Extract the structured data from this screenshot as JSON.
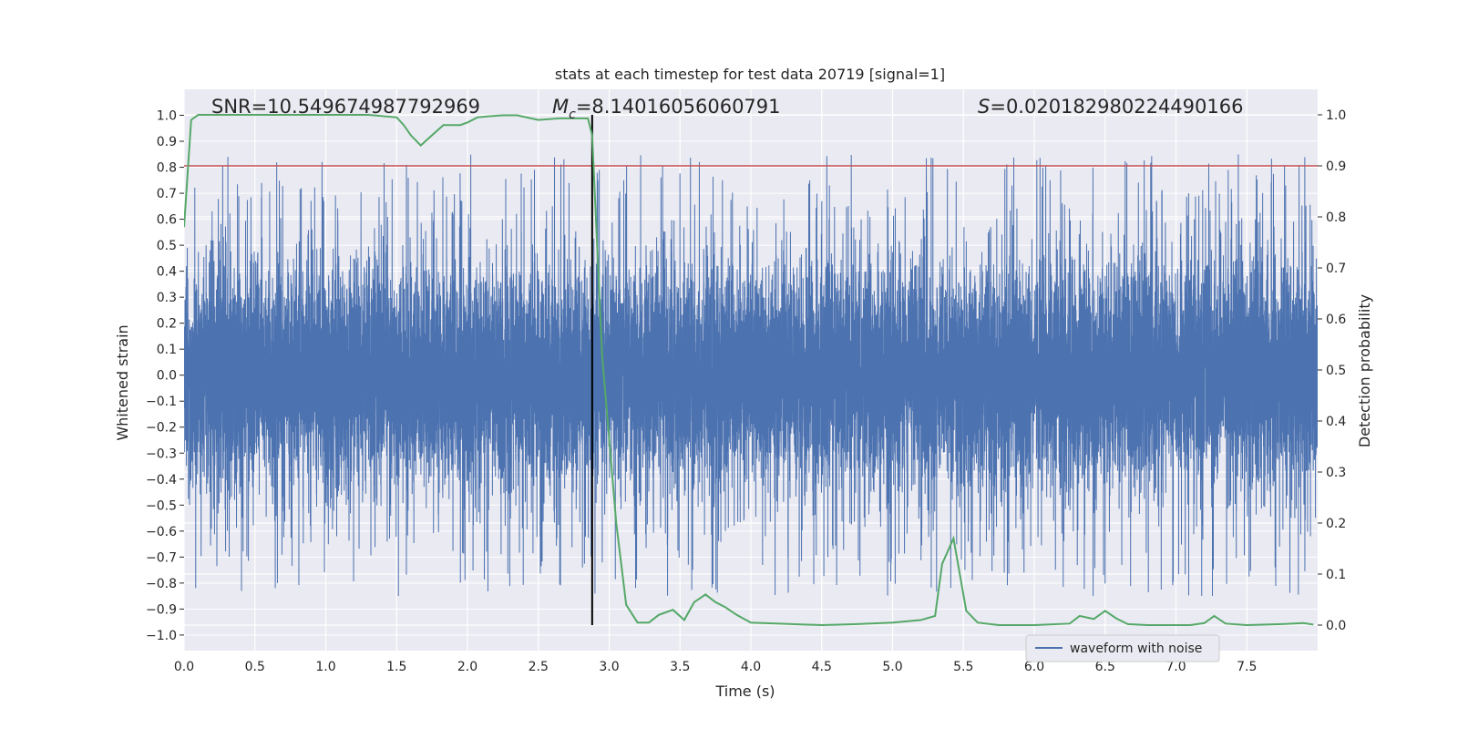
{
  "chart_data": {
    "type": "line",
    "title": "stats at each timestep for test data 20719 [signal=1]",
    "xlabel": "Time (s)",
    "ylabel": "Whitened strain",
    "ylabel_right": "Detection probability",
    "xlim": [
      0.0,
      8.0
    ],
    "ylim": [
      -1.06,
      1.1
    ],
    "ylim_right": [
      -0.05,
      1.05
    ],
    "x_ticks": [
      "0.0",
      "0.5",
      "1.0",
      "1.5",
      "2.0",
      "2.5",
      "3.0",
      "3.5",
      "4.0",
      "4.5",
      "5.0",
      "5.5",
      "6.0",
      "6.5",
      "7.0",
      "7.5"
    ],
    "y_ticks": [
      "1.0",
      "0.9",
      "0.8",
      "0.7",
      "0.6",
      "0.5",
      "0.4",
      "0.3",
      "0.2",
      "0.1",
      "0.0",
      "−0.1",
      "−0.2",
      "−0.3",
      "−0.4",
      "−0.5",
      "−0.6",
      "−0.7",
      "−0.8",
      "−0.9",
      "−1.0"
    ],
    "y_ticks_right": [
      "1.0",
      "0.9",
      "0.8",
      "0.7",
      "0.6",
      "0.5",
      "0.4",
      "0.3",
      "0.2",
      "0.1",
      "0.0"
    ],
    "grid": true,
    "legend": {
      "position": "bottom-right",
      "entries": [
        "waveform with noise"
      ]
    },
    "annotations": {
      "snr": "SNR=10.549674987792969",
      "mc_symbol": "M",
      "mc_sub": "c",
      "mc_value": "=8.14016056060791",
      "s_symbol": "S",
      "s_value": "=0.020182980224490166"
    },
    "threshold_right": 0.9,
    "event_time": 2.88,
    "event_line_range_right": [
      0.0,
      1.0
    ],
    "series": [
      {
        "name": "waveform with noise",
        "axis": "left",
        "color": "#4c72b0",
        "sample_rate": 2048,
        "duration": 8.0,
        "noise_core": 0.32,
        "noise_tail": 0.85
      },
      {
        "axis": "right",
        "color": "#55a868",
        "x": [
          0.0,
          0.05,
          0.1,
          0.15,
          0.2,
          0.3,
          0.5,
          1.0,
          1.3,
          1.5,
          1.55,
          1.6,
          1.67,
          1.75,
          1.83,
          1.9,
          1.95,
          2.0,
          2.07,
          2.15,
          2.25,
          2.35,
          2.5,
          2.65,
          2.75,
          2.85,
          2.88,
          2.95,
          3.05,
          3.12,
          3.2,
          3.28,
          3.35,
          3.45,
          3.53,
          3.6,
          3.68,
          3.75,
          3.82,
          3.9,
          4.0,
          4.5,
          4.75,
          5.0,
          5.2,
          5.3,
          5.35,
          5.43,
          5.52,
          5.6,
          5.75,
          6.0,
          6.25,
          6.32,
          6.42,
          6.5,
          6.58,
          6.66,
          6.8,
          7.0,
          7.1,
          7.2,
          7.27,
          7.35,
          7.5,
          7.75,
          7.9,
          7.97
        ],
        "y": [
          0.78,
          0.99,
          1.0,
          1.0,
          1.0,
          1.0,
          1.0,
          1.0,
          1.0,
          0.995,
          0.98,
          0.96,
          0.94,
          0.96,
          0.98,
          0.98,
          0.98,
          0.985,
          0.995,
          0.997,
          0.999,
          0.999,
          0.99,
          0.993,
          0.993,
          0.993,
          0.96,
          0.53,
          0.2,
          0.04,
          0.005,
          0.005,
          0.02,
          0.03,
          0.01,
          0.045,
          0.06,
          0.045,
          0.035,
          0.02,
          0.005,
          0.0,
          0.002,
          0.005,
          0.01,
          0.018,
          0.12,
          0.17,
          0.028,
          0.005,
          0.0,
          0.0,
          0.003,
          0.018,
          0.012,
          0.028,
          0.013,
          0.002,
          0.0,
          0.0,
          0.0,
          0.004,
          0.018,
          0.003,
          0.0,
          0.002,
          0.004,
          0.001
        ]
      }
    ]
  }
}
